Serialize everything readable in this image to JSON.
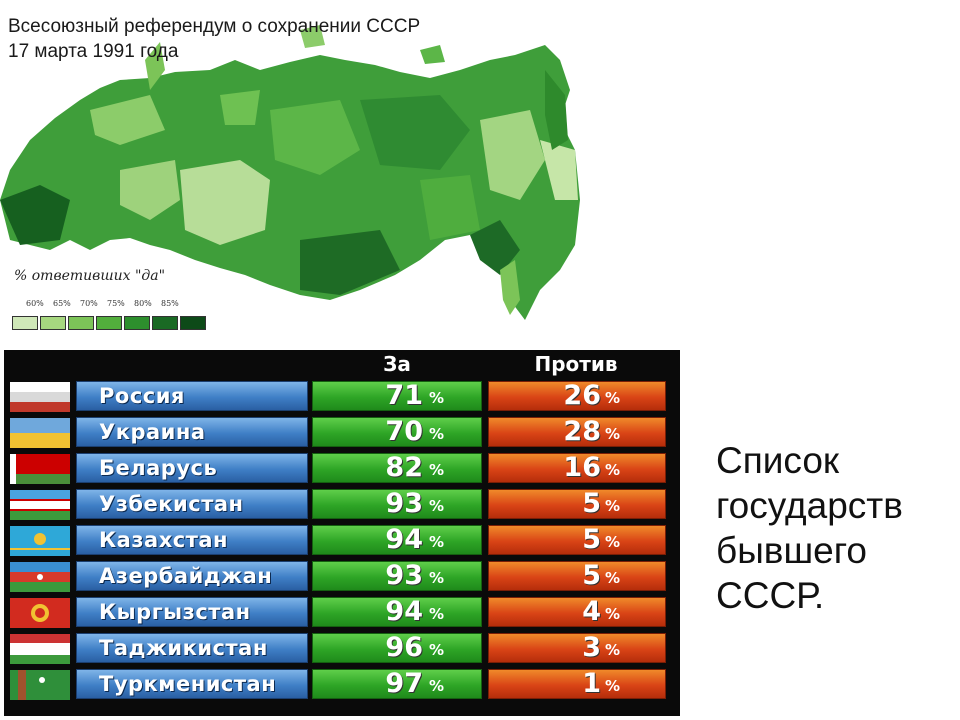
{
  "map": {
    "title_line1": "Всесоюзный референдум о сохранении СССР",
    "title_line2": "17 марта 1991 года",
    "legend_title": "% ответивших \"да\"",
    "legend_labels": [
      "60%",
      "65%",
      "70%",
      "75%",
      "80%",
      "85%"
    ],
    "legend_colors": [
      "#cfe8b8",
      "#a6d77f",
      "#7cc458",
      "#52ae3c",
      "#2d8f2d",
      "#1a6a24",
      "#0d4a18"
    ]
  },
  "table": {
    "header_za": "За",
    "header_protiv": "Против",
    "percent_sign": "%",
    "rows": [
      {
        "country": "Россия",
        "za": "71",
        "protiv": "26"
      },
      {
        "country": "Украина",
        "za": "70",
        "protiv": "28"
      },
      {
        "country": "Беларусь",
        "za": "82",
        "protiv": "16"
      },
      {
        "country": "Узбекистан",
        "za": "93",
        "protiv": "5"
      },
      {
        "country": "Казахстан",
        "za": "94",
        "protiv": "5"
      },
      {
        "country": "Азербайджан",
        "za": "93",
        "protiv": "5"
      },
      {
        "country": "Кыргызстан",
        "za": "94",
        "protiv": "4"
      },
      {
        "country": "Таджикистан",
        "za": "96",
        "protiv": "3"
      },
      {
        "country": "Туркменистан",
        "za": "97",
        "protiv": "1"
      }
    ]
  },
  "caption": {
    "line1": "Список",
    "line2": "государств",
    "line3": "бывшего",
    "line4": "СССР."
  }
}
